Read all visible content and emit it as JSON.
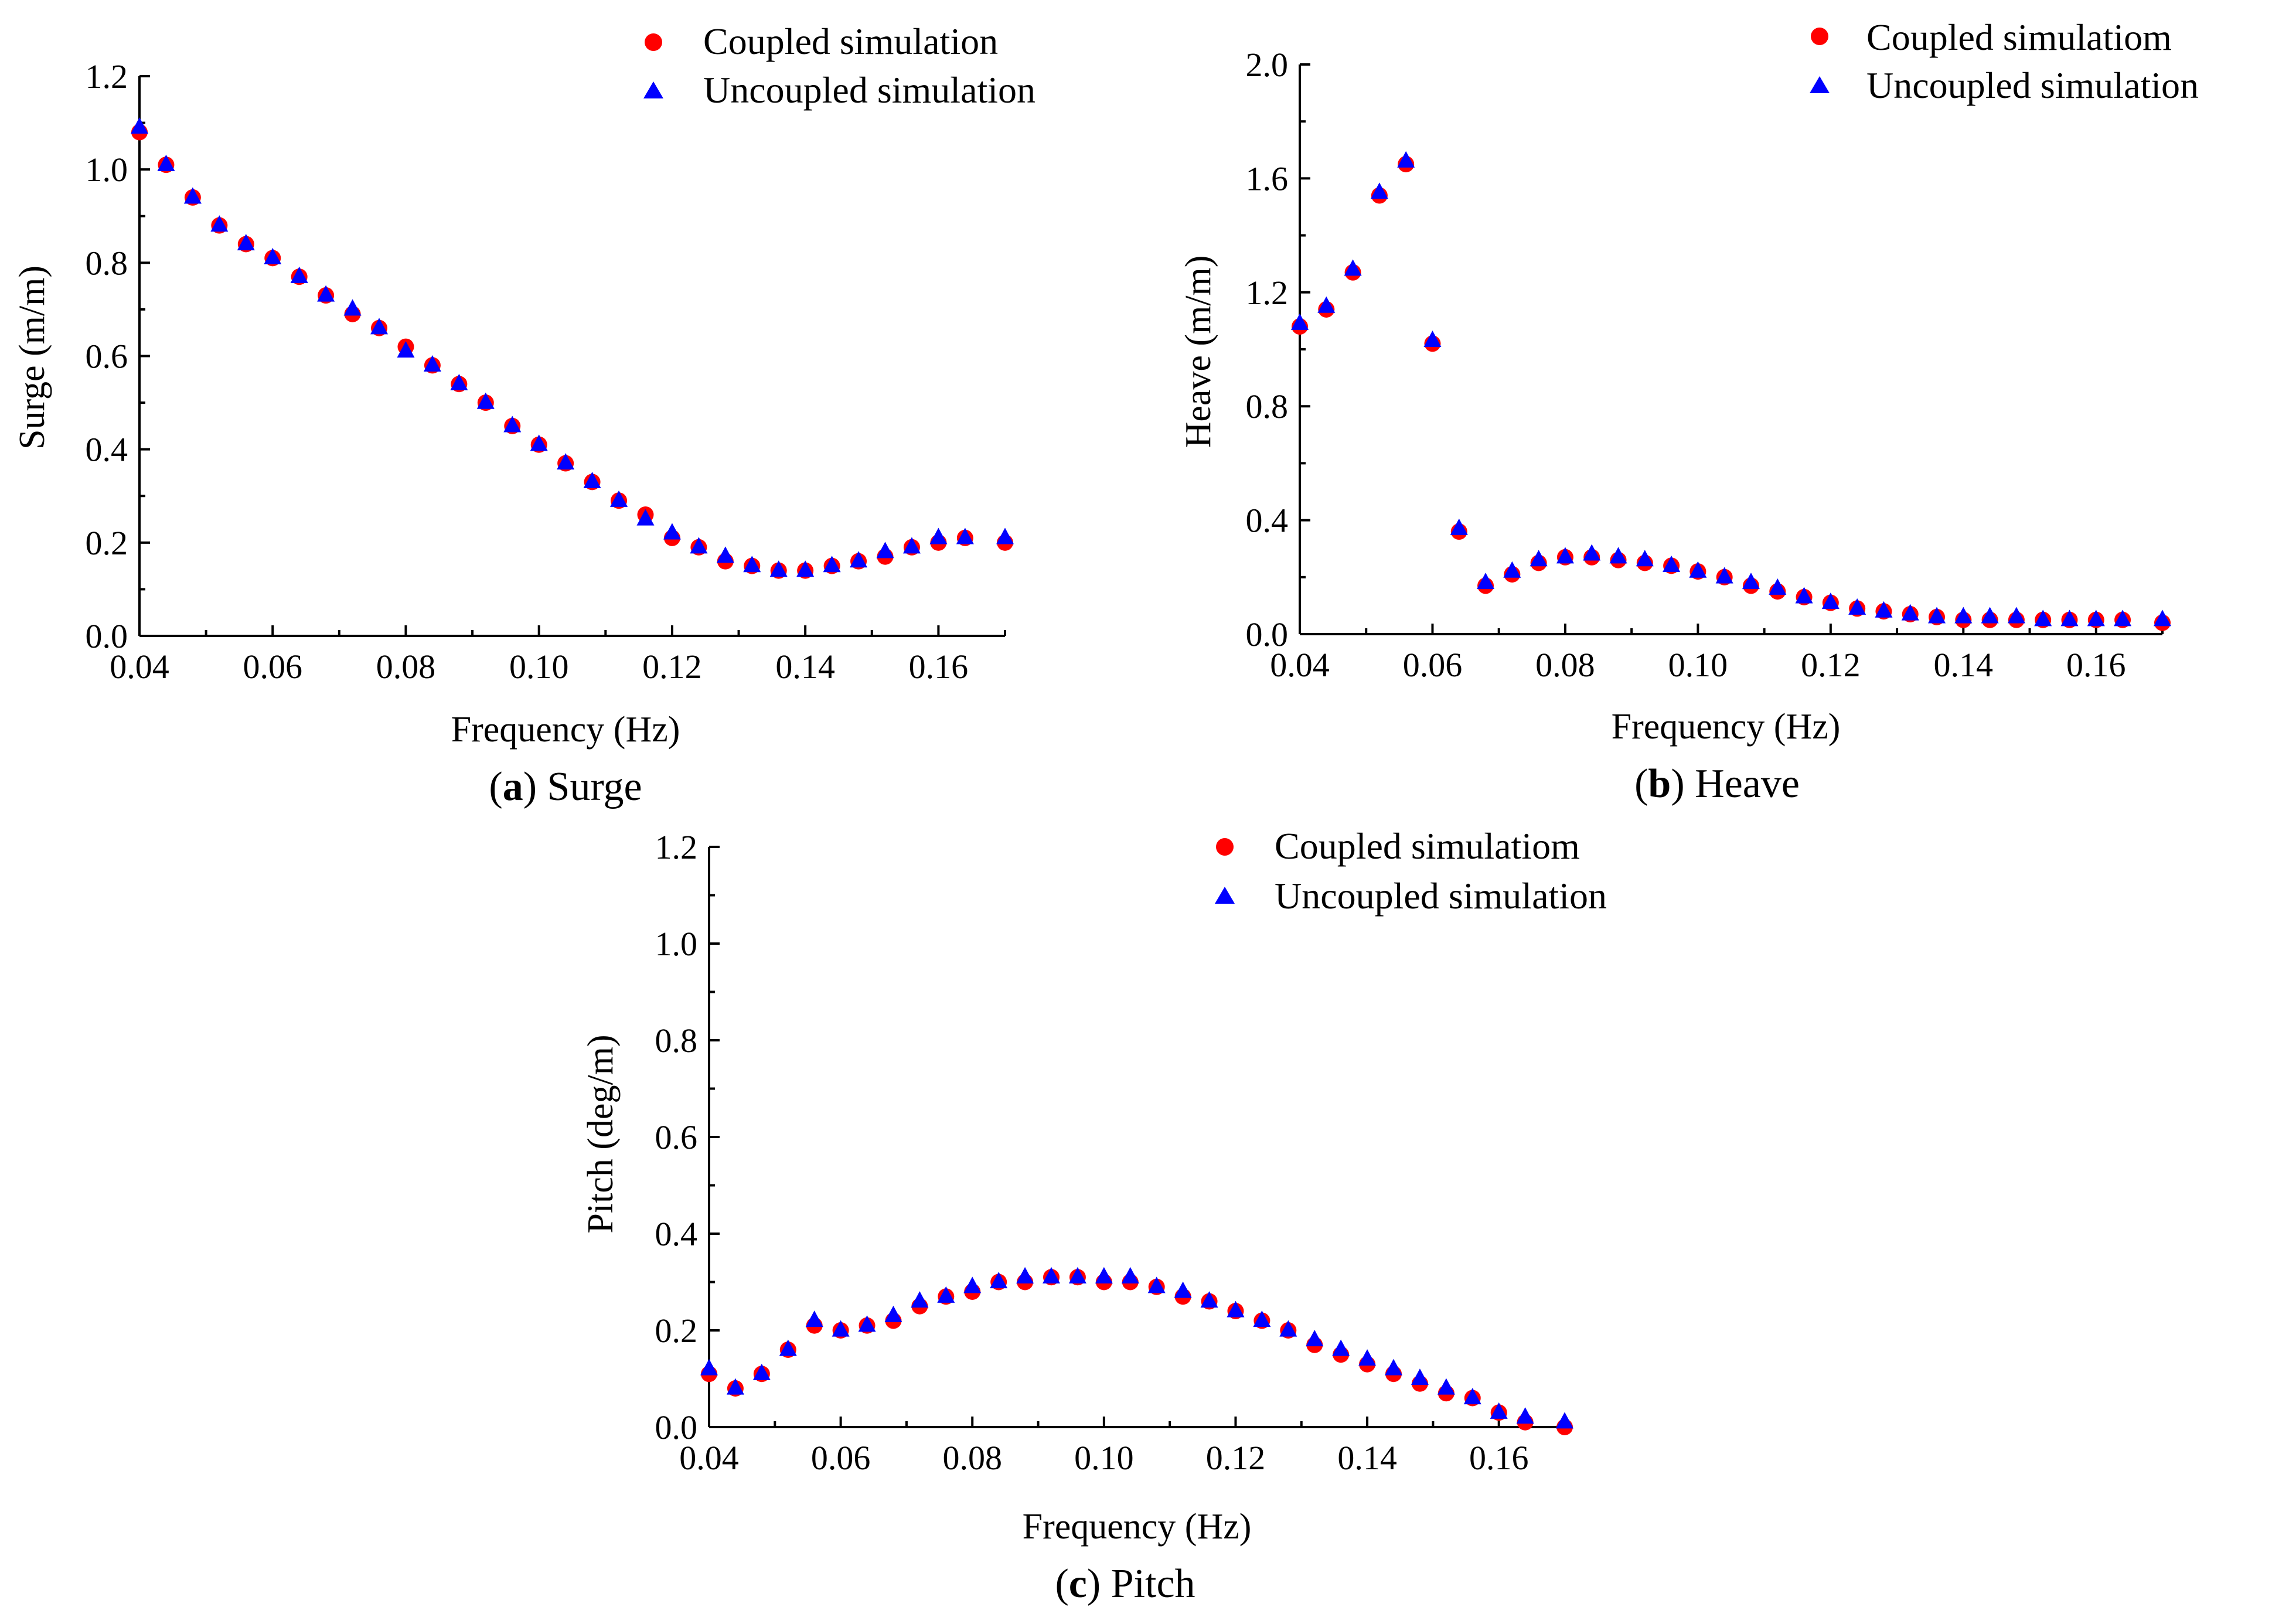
{
  "figure": {
    "panels": [
      {
        "caption_open": "(",
        "caption_letter": "a",
        "caption_text": ") Surge",
        "ylabel": "Surge (m/m)",
        "xlabel": "Frequency (Hz)",
        "legend": [
          "Coupled simulation",
          "Uncoupled simulation"
        ]
      },
      {
        "caption_open": "(",
        "caption_letter": "b",
        "caption_text": ") Heave",
        "ylabel": "Heave (m/m)",
        "xlabel": "Frequency (Hz)",
        "legend": [
          "Coupled simulatiom",
          "Uncoupled simulation"
        ]
      },
      {
        "caption_open": "(",
        "caption_letter": "c",
        "caption_text": ") Pitch",
        "ylabel": "Pitch (deg/m)",
        "xlabel": "Frequency (Hz)",
        "legend": [
          "Coupled simulatiom",
          "Uncoupled simulation"
        ]
      }
    ]
  },
  "colors": {
    "coupled": "#ff0000",
    "uncoupled": "#0000ff",
    "axis": "#000000"
  },
  "chart_data": [
    {
      "type": "scatter",
      "title": "",
      "xlabel": "Frequency (Hz)",
      "ylabel": "Surge (m/m)",
      "xlim": [
        0.04,
        0.17
      ],
      "ylim": [
        0,
        1.2
      ],
      "xticks": [
        "0.04",
        "0.06",
        "0.08",
        "0.10",
        "0.12",
        "0.14",
        "0.16"
      ],
      "yticks": [
        "0.0",
        "0.2",
        "0.4",
        "0.6",
        "0.8",
        "1.0",
        "1.2"
      ],
      "legend_position": "top-right",
      "x": [
        0.04,
        0.044,
        0.048,
        0.052,
        0.056,
        0.06,
        0.064,
        0.068,
        0.072,
        0.076,
        0.08,
        0.084,
        0.088,
        0.092,
        0.096,
        0.1,
        0.104,
        0.108,
        0.112,
        0.116,
        0.12,
        0.124,
        0.128,
        0.132,
        0.136,
        0.14,
        0.144,
        0.148,
        0.152,
        0.156,
        0.16,
        0.164,
        0.17
      ],
      "series": [
        {
          "name": "Coupled simulation",
          "marker": "circle",
          "values": [
            1.08,
            1.01,
            0.94,
            0.88,
            0.84,
            0.81,
            0.77,
            0.73,
            0.69,
            0.66,
            0.62,
            0.58,
            0.54,
            0.5,
            0.45,
            0.41,
            0.37,
            0.33,
            0.29,
            0.26,
            0.21,
            0.19,
            0.16,
            0.15,
            0.14,
            0.14,
            0.15,
            0.16,
            0.17,
            0.19,
            0.2,
            0.21,
            0.2
          ]
        },
        {
          "name": "Uncoupled simulation",
          "marker": "triangle",
          "values": [
            1.09,
            1.01,
            0.94,
            0.88,
            0.84,
            0.81,
            0.77,
            0.73,
            0.7,
            0.66,
            0.61,
            0.58,
            0.54,
            0.5,
            0.45,
            0.41,
            0.37,
            0.33,
            0.29,
            0.25,
            0.22,
            0.19,
            0.17,
            0.15,
            0.14,
            0.14,
            0.15,
            0.16,
            0.18,
            0.19,
            0.21,
            0.21,
            0.21
          ]
        }
      ]
    },
    {
      "type": "scatter",
      "title": "",
      "xlabel": "Frequency (Hz)",
      "ylabel": "Heave (m/m)",
      "xlim": [
        0.04,
        0.17
      ],
      "ylim": [
        0,
        2.0
      ],
      "xticks": [
        "0.04",
        "0.06",
        "0.08",
        "0.10",
        "0.12",
        "0.14",
        "0.16"
      ],
      "yticks": [
        "0.0",
        "0.4",
        "0.8",
        "1.2",
        "1.6",
        "2.0"
      ],
      "legend_position": "top-right",
      "x": [
        0.04,
        0.044,
        0.048,
        0.052,
        0.056,
        0.06,
        0.064,
        0.068,
        0.072,
        0.076,
        0.08,
        0.084,
        0.088,
        0.092,
        0.096,
        0.1,
        0.104,
        0.108,
        0.112,
        0.116,
        0.12,
        0.124,
        0.128,
        0.132,
        0.136,
        0.14,
        0.144,
        0.148,
        0.152,
        0.156,
        0.16,
        0.164,
        0.17
      ],
      "series": [
        {
          "name": "Coupled simulatiom",
          "marker": "circle",
          "values": [
            1.08,
            1.14,
            1.27,
            1.54,
            1.65,
            1.02,
            0.36,
            0.17,
            0.21,
            0.25,
            0.27,
            0.27,
            0.26,
            0.25,
            0.24,
            0.22,
            0.2,
            0.17,
            0.15,
            0.13,
            0.11,
            0.09,
            0.08,
            0.07,
            0.06,
            0.05,
            0.05,
            0.05,
            0.05,
            0.05,
            0.05,
            0.05,
            0.04
          ]
        },
        {
          "name": "Uncoupled simulation",
          "marker": "triangle",
          "values": [
            1.09,
            1.15,
            1.28,
            1.55,
            1.66,
            1.03,
            0.37,
            0.18,
            0.22,
            0.26,
            0.27,
            0.28,
            0.27,
            0.26,
            0.24,
            0.22,
            0.2,
            0.18,
            0.16,
            0.13,
            0.11,
            0.09,
            0.08,
            0.07,
            0.06,
            0.06,
            0.06,
            0.06,
            0.05,
            0.05,
            0.05,
            0.05,
            0.05
          ]
        }
      ]
    },
    {
      "type": "scatter",
      "title": "",
      "xlabel": "Frequency (Hz)",
      "ylabel": "Pitch (deg/m)",
      "xlim": [
        0.04,
        0.17
      ],
      "ylim": [
        0,
        1.2
      ],
      "xticks": [
        "0.04",
        "0.06",
        "0.08",
        "0.10",
        "0.12",
        "0.14",
        "0.16"
      ],
      "yticks": [
        "0.0",
        "0.2",
        "0.4",
        "0.6",
        "0.8",
        "1.0",
        "1.2"
      ],
      "legend_position": "top-right",
      "x": [
        0.04,
        0.044,
        0.048,
        0.052,
        0.056,
        0.06,
        0.064,
        0.068,
        0.072,
        0.076,
        0.08,
        0.084,
        0.088,
        0.092,
        0.096,
        0.1,
        0.104,
        0.108,
        0.112,
        0.116,
        0.12,
        0.124,
        0.128,
        0.132,
        0.136,
        0.14,
        0.144,
        0.148,
        0.152,
        0.156,
        0.16,
        0.164,
        0.17
      ],
      "series": [
        {
          "name": "Coupled simulatiom",
          "marker": "circle",
          "values": [
            0.11,
            0.08,
            0.11,
            0.16,
            0.21,
            0.2,
            0.21,
            0.22,
            0.25,
            0.27,
            0.28,
            0.3,
            0.3,
            0.31,
            0.31,
            0.3,
            0.3,
            0.29,
            0.27,
            0.26,
            0.24,
            0.22,
            0.2,
            0.17,
            0.15,
            0.13,
            0.11,
            0.09,
            0.07,
            0.06,
            0.03,
            0.01,
            0.0
          ]
        },
        {
          "name": "Uncoupled simulation",
          "marker": "triangle",
          "values": [
            0.12,
            0.08,
            0.11,
            0.16,
            0.22,
            0.2,
            0.21,
            0.23,
            0.26,
            0.27,
            0.29,
            0.3,
            0.31,
            0.31,
            0.31,
            0.31,
            0.31,
            0.29,
            0.28,
            0.26,
            0.24,
            0.22,
            0.2,
            0.18,
            0.16,
            0.14,
            0.12,
            0.1,
            0.08,
            0.06,
            0.03,
            0.02,
            0.01
          ]
        }
      ]
    }
  ]
}
